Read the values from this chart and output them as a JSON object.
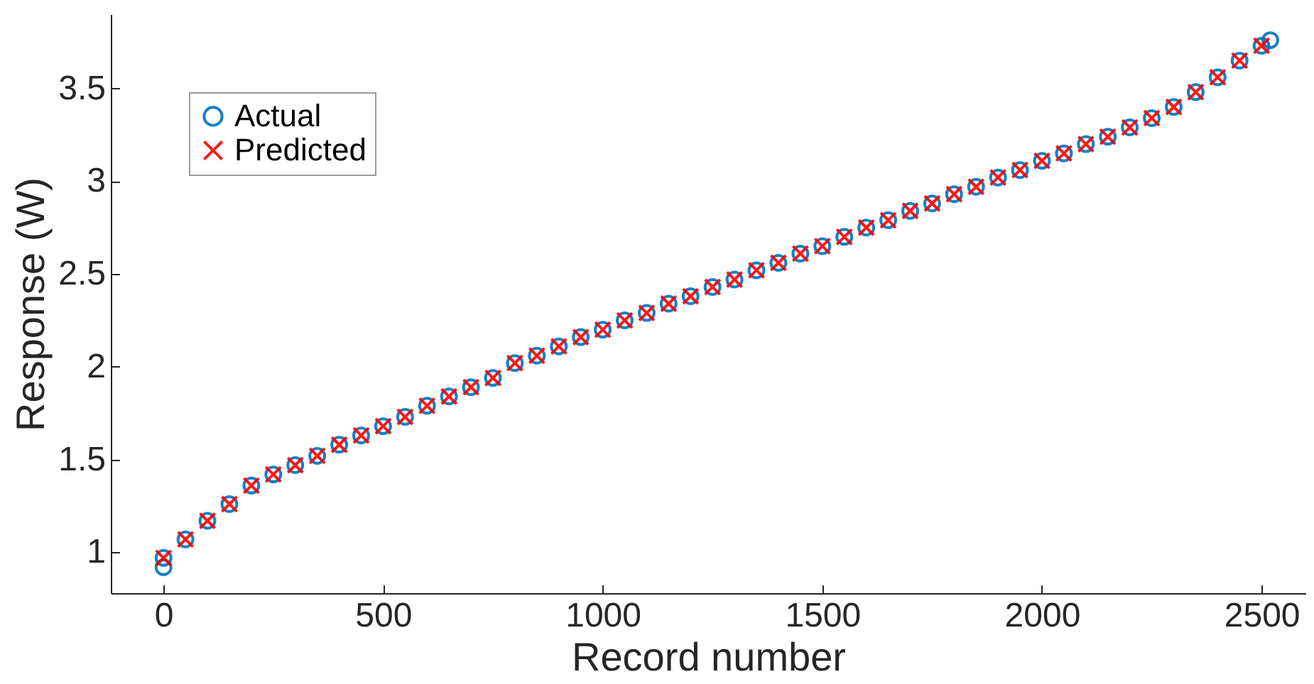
{
  "chart_data": {
    "type": "scatter",
    "xlabel": "Record number",
    "ylabel": "Response (W)",
    "xlim": [
      -120,
      2600
    ],
    "xticks": [
      0,
      500,
      1000,
      1500,
      2000,
      2500
    ],
    "ylim": [
      0.78,
      3.9
    ],
    "yticks": [
      1,
      1.5,
      2,
      2.5,
      3,
      3.5
    ],
    "legend": "top left",
    "grid": false,
    "series": [
      {
        "name": "Actual",
        "color": "#0072bd",
        "marker": "circle",
        "x": [
          0,
          0,
          50,
          100,
          150,
          200,
          250,
          300,
          350,
          400,
          450,
          500,
          550,
          600,
          650,
          700,
          750,
          800,
          850,
          900,
          950,
          1000,
          1050,
          1100,
          1150,
          1200,
          1250,
          1300,
          1350,
          1400,
          1450,
          1500,
          1550,
          1600,
          1650,
          1700,
          1750,
          1800,
          1850,
          1900,
          1950,
          2000,
          2050,
          2100,
          2150,
          2200,
          2250,
          2300,
          2350,
          2400,
          2450,
          2500,
          2520
        ],
        "values": [
          0.92,
          0.97,
          1.07,
          1.17,
          1.26,
          1.36,
          1.42,
          1.47,
          1.52,
          1.58,
          1.63,
          1.68,
          1.73,
          1.79,
          1.84,
          1.89,
          1.94,
          2.02,
          2.06,
          2.11,
          2.16,
          2.2,
          2.25,
          2.29,
          2.34,
          2.38,
          2.43,
          2.47,
          2.52,
          2.56,
          2.61,
          2.65,
          2.7,
          2.75,
          2.79,
          2.84,
          2.88,
          2.93,
          2.97,
          3.02,
          3.06,
          3.11,
          3.15,
          3.2,
          3.24,
          3.29,
          3.34,
          3.4,
          3.48,
          3.56,
          3.65,
          3.73,
          3.76
        ]
      },
      {
        "name": "Predicted",
        "color": "#ff0000",
        "marker": "cross",
        "x": [
          0,
          50,
          100,
          150,
          200,
          250,
          300,
          350,
          400,
          450,
          500,
          550,
          600,
          650,
          700,
          750,
          800,
          850,
          900,
          950,
          1000,
          1050,
          1100,
          1150,
          1200,
          1250,
          1300,
          1350,
          1400,
          1450,
          1500,
          1550,
          1600,
          1650,
          1700,
          1750,
          1800,
          1850,
          1900,
          1950,
          2000,
          2050,
          2100,
          2150,
          2200,
          2250,
          2300,
          2350,
          2400,
          2450,
          2500
        ],
        "values": [
          0.97,
          1.07,
          1.17,
          1.26,
          1.36,
          1.42,
          1.47,
          1.52,
          1.58,
          1.63,
          1.68,
          1.73,
          1.79,
          1.84,
          1.89,
          1.94,
          2.02,
          2.06,
          2.11,
          2.16,
          2.2,
          2.25,
          2.29,
          2.34,
          2.38,
          2.43,
          2.47,
          2.52,
          2.56,
          2.61,
          2.65,
          2.7,
          2.75,
          2.79,
          2.84,
          2.88,
          2.93,
          2.97,
          3.02,
          3.06,
          3.11,
          3.15,
          3.2,
          3.24,
          3.29,
          3.34,
          3.4,
          3.48,
          3.56,
          3.65,
          3.73
        ]
      }
    ]
  }
}
